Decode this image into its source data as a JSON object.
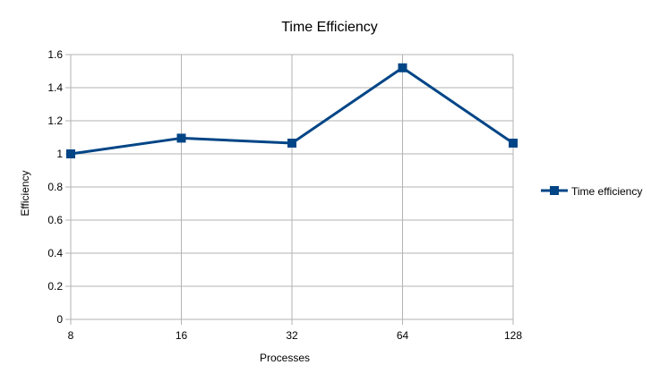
{
  "chart_data": {
    "type": "line",
    "title": "Time Efficiency",
    "xlabel": "Processes",
    "ylabel": "Efficiency",
    "categories": [
      "8",
      "16",
      "32",
      "64",
      "128"
    ],
    "series": [
      {
        "name": "Time efficiency",
        "values": [
          1.0,
          1.095,
          1.065,
          1.52,
          1.065
        ],
        "color": "#004586"
      }
    ],
    "ylim": [
      0,
      1.6
    ],
    "yticks": [
      "0",
      "0.2",
      "0.4",
      "0.6",
      "0.8",
      "1",
      "1.2",
      "1.4",
      "1.6"
    ],
    "grid": true,
    "legend_position": "right"
  },
  "colors": {
    "grid": "#b3b3b3",
    "series": "#004586"
  }
}
